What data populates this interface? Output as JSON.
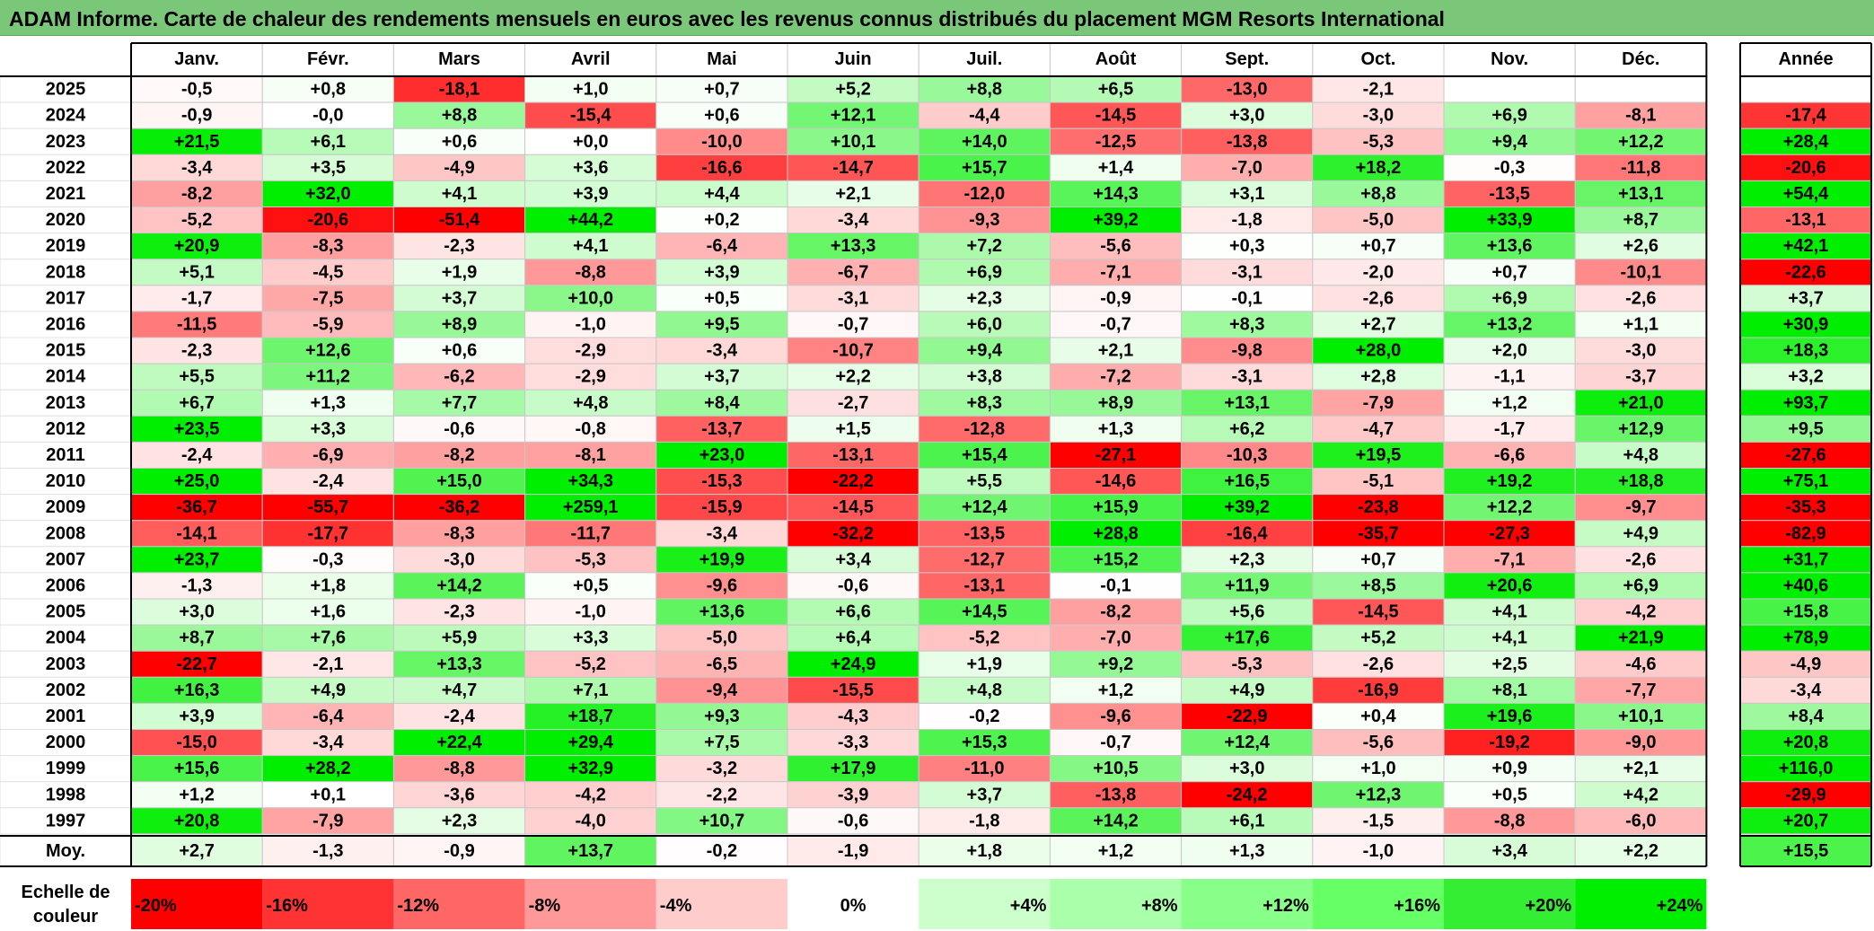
{
  "title": "ADAM Informe. Carte de chaleur des rendements mensuels en euros avec les revenus connus distribués du placement MGM Resorts International",
  "chart_data": {
    "type": "heatmap",
    "title": "ADAM Informe. Carte de chaleur des rendements mensuels en euros avec les revenus connus distribués du placement MGM Resorts International",
    "columns": [
      "Janv.",
      "Févr.",
      "Mars",
      "Avril",
      "Mai",
      "Juin",
      "Juil.",
      "Août",
      "Sept.",
      "Oct.",
      "Nov.",
      "Déc."
    ],
    "year_column_label": "Année",
    "rows": [
      {
        "year": "2025",
        "values": [
          "-0,5",
          "+0,8",
          "-18,1",
          "+1,0",
          "+0,7",
          "+5,2",
          "+8,8",
          "+6,5",
          "-13,0",
          "-2,1",
          "",
          ""
        ],
        "annual": ""
      },
      {
        "year": "2024",
        "values": [
          "-0,9",
          "-0,0",
          "+8,8",
          "-15,4",
          "+0,6",
          "+12,1",
          "-4,4",
          "-14,5",
          "+3,0",
          "-3,0",
          "+6,9",
          "-8,1"
        ],
        "annual": "-17,4"
      },
      {
        "year": "2023",
        "values": [
          "+21,5",
          "+6,1",
          "+0,6",
          "+0,0",
          "-10,0",
          "+10,1",
          "+14,0",
          "-12,5",
          "-13,8",
          "-5,3",
          "+9,4",
          "+12,2"
        ],
        "annual": "+28,4"
      },
      {
        "year": "2022",
        "values": [
          "-3,4",
          "+3,5",
          "-4,9",
          "+3,6",
          "-16,6",
          "-14,7",
          "+15,7",
          "+1,4",
          "-7,0",
          "+18,2",
          "-0,3",
          "-11,8"
        ],
        "annual": "-20,6"
      },
      {
        "year": "2021",
        "values": [
          "-8,2",
          "+32,0",
          "+4,1",
          "+3,9",
          "+4,4",
          "+2,1",
          "-12,0",
          "+14,3",
          "+3,1",
          "+8,8",
          "-13,5",
          "+13,1"
        ],
        "annual": "+54,4"
      },
      {
        "year": "2020",
        "values": [
          "-5,2",
          "-20,6",
          "-51,4",
          "+44,2",
          "+0,2",
          "-3,4",
          "-9,3",
          "+39,2",
          "-1,8",
          "-5,0",
          "+33,9",
          "+8,7"
        ],
        "annual": "-13,1"
      },
      {
        "year": "2019",
        "values": [
          "+20,9",
          "-8,3",
          "-2,3",
          "+4,1",
          "-6,4",
          "+13,3",
          "+7,2",
          "-5,6",
          "+0,3",
          "+0,7",
          "+13,6",
          "+2,6"
        ],
        "annual": "+42,1"
      },
      {
        "year": "2018",
        "values": [
          "+5,1",
          "-4,5",
          "+1,9",
          "-8,8",
          "+3,9",
          "-6,7",
          "+6,9",
          "-7,1",
          "-3,1",
          "-2,0",
          "+0,7",
          "-10,1"
        ],
        "annual": "-22,6"
      },
      {
        "year": "2017",
        "values": [
          "-1,7",
          "-7,5",
          "+3,7",
          "+10,0",
          "+0,5",
          "-3,1",
          "+2,3",
          "-0,9",
          "-0,1",
          "-2,6",
          "+6,9",
          "-2,6"
        ],
        "annual": "+3,7"
      },
      {
        "year": "2016",
        "values": [
          "-11,5",
          "-5,9",
          "+8,9",
          "-1,0",
          "+9,5",
          "-0,7",
          "+6,0",
          "-0,7",
          "+8,3",
          "+2,7",
          "+13,2",
          "+1,1"
        ],
        "annual": "+30,9"
      },
      {
        "year": "2015",
        "values": [
          "-2,3",
          "+12,6",
          "+0,6",
          "-2,9",
          "-3,4",
          "-10,7",
          "+9,4",
          "+2,1",
          "-9,8",
          "+28,0",
          "+2,0",
          "-3,0"
        ],
        "annual": "+18,3"
      },
      {
        "year": "2014",
        "values": [
          "+5,5",
          "+11,2",
          "-6,2",
          "-2,9",
          "+3,7",
          "+2,2",
          "+3,8",
          "-7,2",
          "-3,1",
          "+2,8",
          "-1,1",
          "-3,7"
        ],
        "annual": "+3,2"
      },
      {
        "year": "2013",
        "values": [
          "+6,7",
          "+1,3",
          "+7,7",
          "+4,8",
          "+8,4",
          "-2,7",
          "+8,3",
          "+8,9",
          "+13,1",
          "-7,9",
          "+1,2",
          "+21,0"
        ],
        "annual": "+93,7"
      },
      {
        "year": "2012",
        "values": [
          "+23,5",
          "+3,3",
          "-0,6",
          "-0,8",
          "-13,7",
          "+1,5",
          "-12,8",
          "+1,3",
          "+6,2",
          "-4,7",
          "-1,7",
          "+12,9"
        ],
        "annual": "+9,5"
      },
      {
        "year": "2011",
        "values": [
          "-2,4",
          "-6,9",
          "-8,2",
          "-8,1",
          "+23,0",
          "-13,1",
          "+15,4",
          "-27,1",
          "-10,3",
          "+19,5",
          "-6,6",
          "+4,8"
        ],
        "annual": "-27,6"
      },
      {
        "year": "2010",
        "values": [
          "+25,0",
          "-2,4",
          "+15,0",
          "+34,3",
          "-15,3",
          "-22,2",
          "+5,5",
          "-14,6",
          "+16,5",
          "-5,1",
          "+19,2",
          "+18,8"
        ],
        "annual": "+75,1"
      },
      {
        "year": "2009",
        "values": [
          "-36,7",
          "-55,7",
          "-36,2",
          "+259,1",
          "-15,9",
          "-14,5",
          "+12,4",
          "+15,9",
          "+39,2",
          "-23,8",
          "+12,2",
          "-9,7"
        ],
        "annual": "-35,3"
      },
      {
        "year": "2008",
        "values": [
          "-14,1",
          "-17,7",
          "-8,3",
          "-11,7",
          "-3,4",
          "-32,2",
          "-13,5",
          "+28,8",
          "-16,4",
          "-35,7",
          "-27,3",
          "+4,9"
        ],
        "annual": "-82,9"
      },
      {
        "year": "2007",
        "values": [
          "+23,7",
          "-0,3",
          "-3,0",
          "-5,3",
          "+19,9",
          "+3,4",
          "-12,7",
          "+15,2",
          "+2,3",
          "+0,7",
          "-7,1",
          "-2,6"
        ],
        "annual": "+31,7"
      },
      {
        "year": "2006",
        "values": [
          "-1,3",
          "+1,8",
          "+14,2",
          "+0,5",
          "-9,6",
          "-0,6",
          "-13,1",
          "-0,1",
          "+11,9",
          "+8,5",
          "+20,6",
          "+6,9"
        ],
        "annual": "+40,6"
      },
      {
        "year": "2005",
        "values": [
          "+3,0",
          "+1,6",
          "-2,3",
          "-1,0",
          "+13,6",
          "+6,6",
          "+14,5",
          "-8,2",
          "+5,6",
          "-14,5",
          "+4,1",
          "-4,2"
        ],
        "annual": "+15,8"
      },
      {
        "year": "2004",
        "values": [
          "+8,7",
          "+7,6",
          "+5,9",
          "+3,3",
          "-5,0",
          "+6,4",
          "-5,2",
          "-7,0",
          "+17,6",
          "+5,2",
          "+4,1",
          "+21,9"
        ],
        "annual": "+78,9"
      },
      {
        "year": "2003",
        "values": [
          "-22,7",
          "-2,1",
          "+13,3",
          "-5,2",
          "-6,5",
          "+24,9",
          "+1,9",
          "+9,2",
          "-5,3",
          "-2,6",
          "+2,5",
          "-4,6"
        ],
        "annual": "-4,9"
      },
      {
        "year": "2002",
        "values": [
          "+16,3",
          "+4,9",
          "+4,7",
          "+7,1",
          "-9,4",
          "-15,5",
          "+4,8",
          "+1,2",
          "+4,9",
          "-16,9",
          "+8,1",
          "-7,7"
        ],
        "annual": "-3,4"
      },
      {
        "year": "2001",
        "values": [
          "+3,9",
          "-6,4",
          "-2,4",
          "+18,7",
          "+9,3",
          "-4,3",
          "-0,2",
          "-9,6",
          "-22,9",
          "+0,4",
          "+19,6",
          "+10,1"
        ],
        "annual": "+8,4"
      },
      {
        "year": "2000",
        "values": [
          "-15,0",
          "-3,4",
          "+22,4",
          "+29,4",
          "+7,5",
          "-3,3",
          "+15,3",
          "-0,7",
          "+12,4",
          "-5,6",
          "-19,2",
          "-9,0"
        ],
        "annual": "+20,8"
      },
      {
        "year": "1999",
        "values": [
          "+15,6",
          "+28,2",
          "-8,8",
          "+32,9",
          "-3,2",
          "+17,9",
          "-11,0",
          "+10,5",
          "+3,0",
          "+1,0",
          "+0,9",
          "+2,1"
        ],
        "annual": "+116,0"
      },
      {
        "year": "1998",
        "values": [
          "+1,2",
          "+0,1",
          "-3,6",
          "-4,2",
          "-2,2",
          "-3,9",
          "+3,7",
          "-13,8",
          "-24,2",
          "+12,3",
          "+0,5",
          "+4,2"
        ],
        "annual": "-29,9"
      },
      {
        "year": "1997",
        "values": [
          "+20,8",
          "-7,9",
          "+2,3",
          "-4,0",
          "+10,7",
          "-0,6",
          "-1,8",
          "+14,2",
          "+6,1",
          "-1,5",
          "-8,8",
          "-6,0"
        ],
        "annual": "+20,7"
      }
    ],
    "average": {
      "label": "Moy.",
      "values": [
        "+2,7",
        "-1,3",
        "-0,9",
        "+13,7",
        "-0,2",
        "-1,9",
        "+1,8",
        "+1,2",
        "+1,3",
        "-1,0",
        "+3,4",
        "+2,2"
      ],
      "annual": "+15,5"
    },
    "scale": {
      "label_line1": "Echelle de",
      "label_line2": "couleur",
      "entries": [
        {
          "text": "-20%",
          "color": "#ff0000",
          "align": "left"
        },
        {
          "text": "-16%",
          "color": "#ff3333",
          "align": "left"
        },
        {
          "text": "-12%",
          "color": "#ff6666",
          "align": "left"
        },
        {
          "text": "-8%",
          "color": "#ff9999",
          "align": "left"
        },
        {
          "text": "-4%",
          "color": "#ffcccc",
          "align": "left"
        },
        {
          "text": "0%",
          "color": "#ffffff",
          "align": "center"
        },
        {
          "text": "+4%",
          "color": "#ccffcc",
          "align": "right"
        },
        {
          "text": "+8%",
          "color": "#aaffaa",
          "align": "right"
        },
        {
          "text": "+12%",
          "color": "#88ff88",
          "align": "right"
        },
        {
          "text": "+16%",
          "color": "#66ff66",
          "align": "right"
        },
        {
          "text": "+20%",
          "color": "#33ee33",
          "align": "right"
        },
        {
          "text": "+24%",
          "color": "#00ee00",
          "align": "right"
        }
      ]
    }
  },
  "colors": {
    "title_bg": "#7ac77a",
    "negative_max": "#ff0000",
    "positive_max": "#00ee00",
    "neutral": "#ffffff"
  }
}
